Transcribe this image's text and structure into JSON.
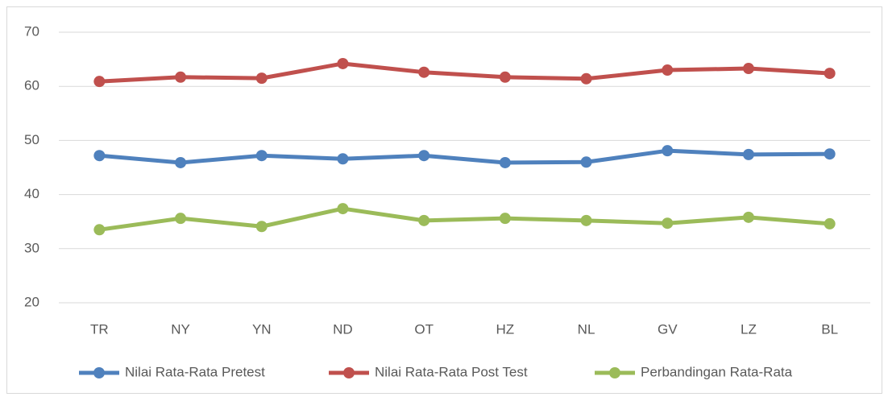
{
  "chart_data": {
    "type": "line",
    "categories": [
      "TR",
      "NY",
      "YN",
      "ND",
      "OT",
      "HZ",
      "NL",
      "GV",
      "LZ",
      "BL"
    ],
    "series": [
      {
        "name": "Nilai Rata-Rata Pretest",
        "color": "#4f81bd",
        "values": [
          47.2,
          45.9,
          47.2,
          46.6,
          47.2,
          45.9,
          46.0,
          48.1,
          47.4,
          47.5
        ]
      },
      {
        "name": "Nilai Rata-Rata Post Test",
        "color": "#c0504d",
        "values": [
          60.9,
          61.7,
          61.5,
          64.2,
          62.6,
          61.7,
          61.4,
          63.0,
          63.3,
          62.4
        ]
      },
      {
        "name": "Perbandingan Rata-Rata",
        "color": "#9bbb59",
        "values": [
          33.5,
          35.6,
          34.1,
          37.4,
          35.2,
          35.6,
          35.2,
          34.7,
          35.8,
          34.6
        ]
      }
    ],
    "ylim": [
      20,
      70
    ],
    "yticks": [
      20,
      30,
      40,
      50,
      60,
      70
    ],
    "grid": true,
    "legend": "bottom"
  }
}
